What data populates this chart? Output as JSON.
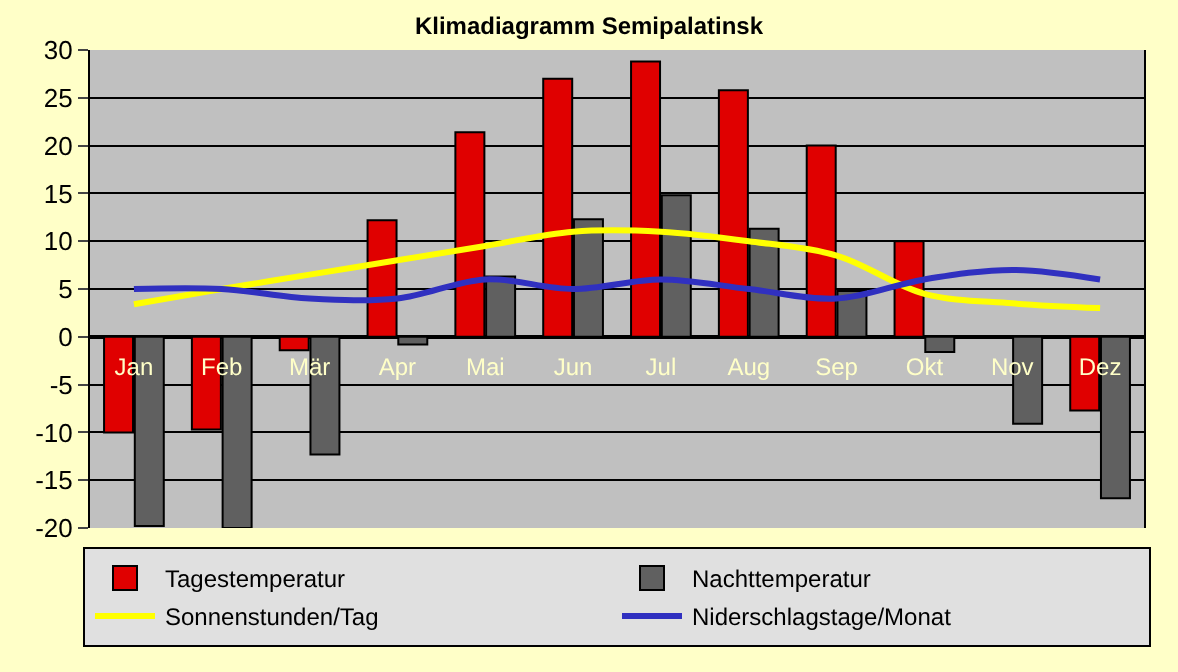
{
  "chart_data": {
    "type": "bar",
    "title": "Klimadiagramm Semipalatinsk",
    "categories": [
      "Jan",
      "Feb",
      "Mär",
      "Apr",
      "Mai",
      "Jun",
      "Jul",
      "Aug",
      "Sep",
      "Okt",
      "Nov",
      "Dez"
    ],
    "series": [
      {
        "name": "Tagestemperatur",
        "color": "#e00000",
        "values": [
          -10,
          -9.7,
          -1.4,
          12.2,
          21.4,
          27,
          28.8,
          25.8,
          20,
          10,
          null,
          -7.7
        ]
      },
      {
        "name": "Nachttemperatur",
        "color": "#606060",
        "values": [
          -19.8,
          -20,
          -12.3,
          -0.8,
          6.3,
          12.3,
          14.8,
          11.3,
          4.8,
          -1.6,
          -9.1,
          -16.9
        ]
      },
      {
        "name": "Sonnenstunden/Tag",
        "type": "line",
        "color": "#ffff00",
        "values": [
          3.4,
          5,
          6.5,
          8,
          9.5,
          11,
          11,
          10,
          8.5,
          4.5,
          3.5,
          3
        ]
      },
      {
        "name": "Niderschlagstage/Monat",
        "type": "line",
        "color": "#3030c0",
        "values": [
          5,
          5,
          4,
          4,
          6,
          5,
          6,
          5,
          4,
          6,
          7,
          6
        ]
      }
    ],
    "ylim": [
      -20,
      30
    ],
    "yticks": [
      -20,
      -15,
      -10,
      -5,
      0,
      5,
      10,
      15,
      20,
      25,
      30
    ],
    "grid": "y",
    "legend": "bottom",
    "marker": "none"
  }
}
